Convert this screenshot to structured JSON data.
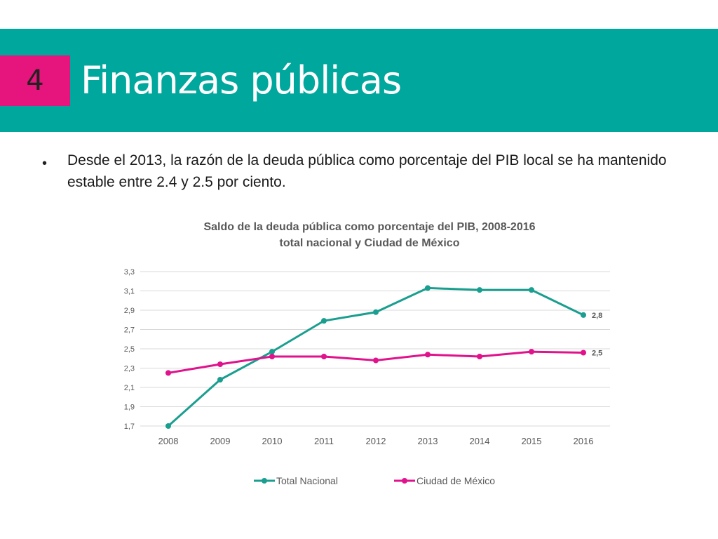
{
  "slide": {
    "section_number": "4",
    "title": "Finanzas públicas",
    "bullet": "Desde el 2013, la razón de la deuda pública como porcentaje del PIB local se ha mantenido estable entre 2.4 y 2.5 por ciento."
  },
  "colors": {
    "band": "#00A79D",
    "badge": "#E6147D",
    "total": "#1A9E8F",
    "cdmx": "#E0128C",
    "grid": "#D9D9D9"
  },
  "chart_data": {
    "type": "line",
    "title_line1": "Saldo de la deuda pública como porcentaje del PIB, 2008-2016",
    "title_line2": "total nacional y Ciudad de México",
    "categories": [
      "2008",
      "2009",
      "2010",
      "2011",
      "2012",
      "2013",
      "2014",
      "2015",
      "2016"
    ],
    "y_ticks": [
      "1,7",
      "1,9",
      "2,1",
      "2,3",
      "2,5",
      "2,7",
      "2,9",
      "3,1",
      "3,3"
    ],
    "ylim": [
      1.7,
      3.3
    ],
    "grid": true,
    "legend_position": "bottom",
    "series": [
      {
        "name": "Total Nacional",
        "color": "#1A9E8F",
        "values": [
          1.7,
          2.18,
          2.47,
          2.79,
          2.88,
          3.13,
          3.11,
          3.11,
          2.85
        ],
        "end_label": "2,8"
      },
      {
        "name": "Ciudad de México",
        "color": "#E0128C",
        "values": [
          2.25,
          2.34,
          2.42,
          2.42,
          2.38,
          2.44,
          2.42,
          2.47,
          2.46
        ],
        "end_label": "2,5"
      }
    ]
  }
}
